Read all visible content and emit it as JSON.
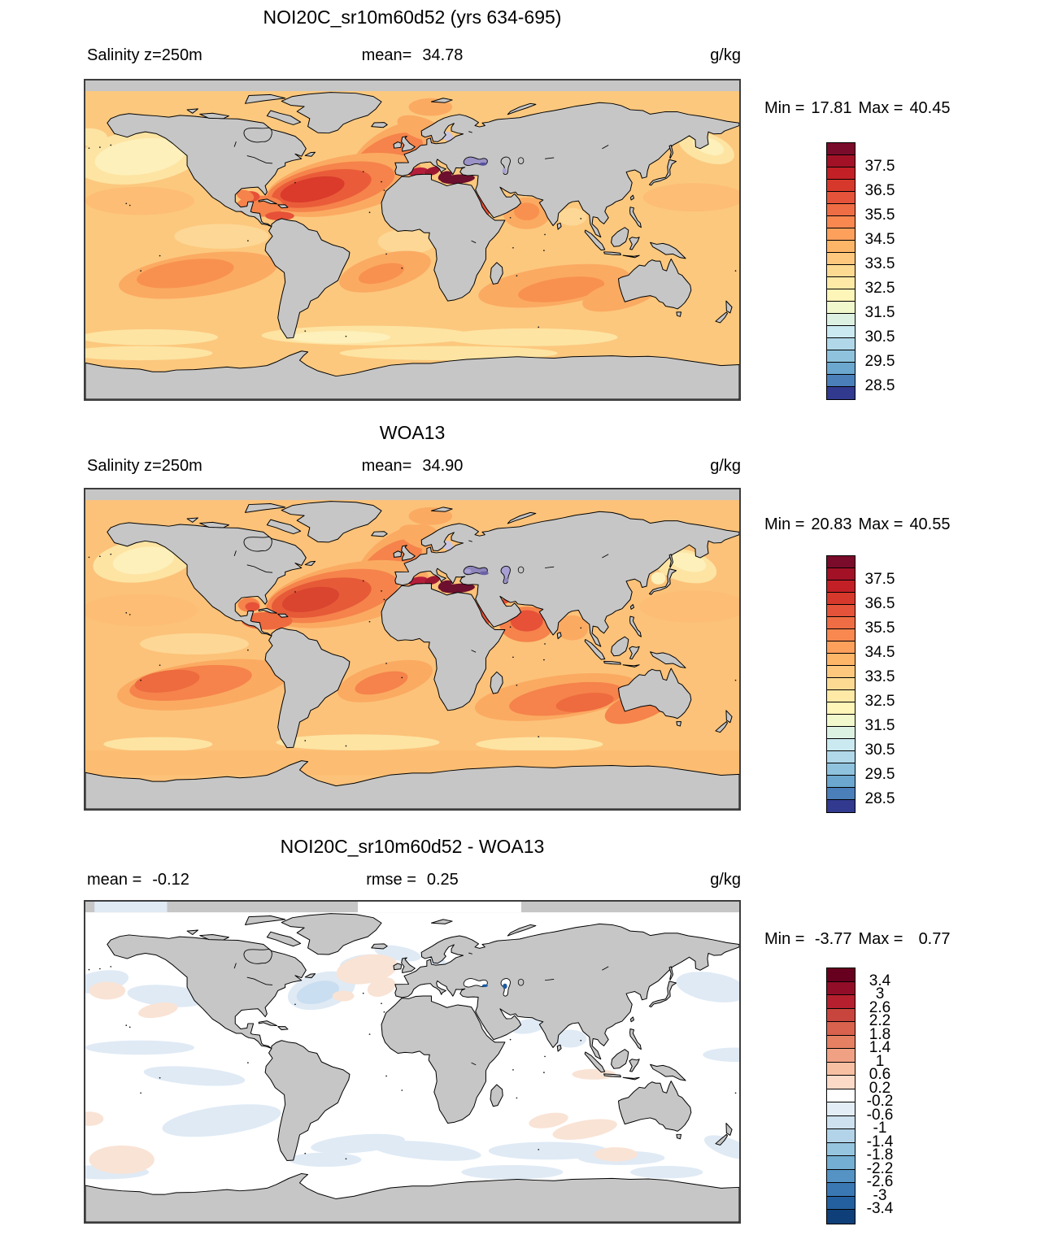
{
  "map_colors": {
    "land": "#c6c6c6",
    "coastline": "#000000",
    "frame": "#3d3d3d",
    "ocean_base_model": "#fcc87e",
    "ocean_base_obs": "#fcc279",
    "ocean_base_diff": "#ffffff"
  },
  "panels": [
    {
      "title": "NOI20C_sr10m60d52 (yrs 634-695)",
      "header": {
        "left_label": "Salinity z=250m",
        "left_value": "",
        "center_label": "mean=",
        "center_value": "34.78",
        "units": "g/kg"
      },
      "legend": {
        "min_label": "Min =",
        "min_value": "17.81",
        "max_label": "Max =",
        "max_value": "40.45"
      },
      "colorbar": {
        "ticks": [
          "37.5",
          "36.5",
          "35.5",
          "34.5",
          "33.5",
          "32.5",
          "31.5",
          "30.5",
          "29.5",
          "28.5"
        ],
        "tick_start": 2,
        "tick_step": 2,
        "colors": [
          "#7a0b2a",
          "#a31127",
          "#c22026",
          "#d6392b",
          "#e4533a",
          "#ef6d44",
          "#f88850",
          "#fca05c",
          "#fdb568",
          "#fdc87e",
          "#fdda92",
          "#feeaa6",
          "#fef5b8",
          "#f0f8cc",
          "#ddf1e3",
          "#cbe9f0",
          "#b0d8e8",
          "#8fc3dd",
          "#6ba7ce",
          "#4a7fba",
          "#313a8e"
        ]
      }
    },
    {
      "title": "WOA13",
      "header": {
        "left_label": "Salinity z=250m",
        "left_value": "",
        "center_label": "mean=",
        "center_value": "34.90",
        "units": "g/kg"
      },
      "legend": {
        "min_label": "Min =",
        "min_value": "20.83",
        "max_label": "Max =",
        "max_value": "40.55"
      },
      "colorbar": {
        "ticks": [
          "37.5",
          "36.5",
          "35.5",
          "34.5",
          "33.5",
          "32.5",
          "31.5",
          "30.5",
          "29.5",
          "28.5"
        ],
        "tick_start": 2,
        "tick_step": 2,
        "colors": [
          "#7a0b2a",
          "#a31127",
          "#c22026",
          "#d6392b",
          "#e4533a",
          "#ef6d44",
          "#f88850",
          "#fca05c",
          "#fdb568",
          "#fdc87e",
          "#fdda92",
          "#feeaa6",
          "#fef5b8",
          "#f0f8cc",
          "#ddf1e3",
          "#cbe9f0",
          "#b0d8e8",
          "#8fc3dd",
          "#6ba7ce",
          "#4a7fba",
          "#313a8e"
        ]
      }
    },
    {
      "title": "NOI20C_sr10m60d52 - WOA13",
      "header": {
        "left_label": "mean =",
        "left_value": "-0.12",
        "center_label": "rmse =",
        "center_value": "0.25",
        "units": "g/kg"
      },
      "legend": {
        "min_label": "Min =",
        "min_value": "-3.77",
        "max_label": "Max =",
        "max_value": "0.77"
      },
      "colorbar": {
        "ticks": [
          "3.4",
          "3",
          "2.6",
          "2.2",
          "1.8",
          "1.4",
          "1",
          "0.6",
          "0.2",
          "-0.2",
          "-0.6",
          "-1",
          "-1.4",
          "-1.8",
          "-2.2",
          "-2.6",
          "-3",
          "-3.4"
        ],
        "tick_start": 1,
        "tick_step": 1,
        "colors": [
          "#67001f",
          "#920e28",
          "#b6202e",
          "#c8453e",
          "#d8624e",
          "#e58063",
          "#f0a183",
          "#f8c0a3",
          "#fbdbc8",
          "#ffffff",
          "#e2edf5",
          "#cde1ef",
          "#b3d4e8",
          "#96c5df",
          "#74afd3",
          "#5593c4",
          "#3a78b4",
          "#24609f",
          "#0f3f78"
        ]
      }
    }
  ],
  "chart_data": [
    {
      "type": "heatmap",
      "subtype": "global_filled_contour_map",
      "title": "NOI20C_sr10m60d52 (yrs 634-695)",
      "variable": "Salinity",
      "depth": "z=250m",
      "units": "g/kg",
      "mean": 34.78,
      "min": 17.81,
      "max": 40.45,
      "colorbar_ticks": [
        37.5,
        36.5,
        35.5,
        34.5,
        33.5,
        32.5,
        31.5,
        30.5,
        29.5,
        28.5
      ],
      "colorbar_levels": 21,
      "colorbar_range": [
        28.0,
        38.5
      ],
      "legend_position": "right",
      "notes": "highest salinity in Mediterranean and N Atlantic subtropical gyre; fresher (pale) N Pacific and Southern Ocean; land masked gray"
    },
    {
      "type": "heatmap",
      "subtype": "global_filled_contour_map",
      "title": "WOA13",
      "variable": "Salinity",
      "depth": "z=250m",
      "units": "g/kg",
      "mean": 34.9,
      "min": 20.83,
      "max": 40.55,
      "colorbar_ticks": [
        37.5,
        36.5,
        35.5,
        34.5,
        33.5,
        32.5,
        31.5,
        30.5,
        29.5,
        28.5
      ],
      "colorbar_levels": 21,
      "colorbar_range": [
        28.0,
        38.5
      ],
      "legend_position": "right"
    },
    {
      "type": "heatmap",
      "subtype": "global_difference_map",
      "title": "NOI20C_sr10m60d52 - WOA13",
      "units": "g/kg",
      "mean": -0.12,
      "rmse": 0.25,
      "min": -3.77,
      "max": 0.77,
      "colorbar_ticks": [
        3.4,
        3,
        2.6,
        2.2,
        1.8,
        1.4,
        1,
        0.6,
        0.2,
        -0.2,
        -0.6,
        -1,
        -1.4,
        -1.8,
        -2.2,
        -2.6,
        -3,
        -3.4
      ],
      "colorbar_levels": 19,
      "legend_position": "right",
      "notes": "mostly near-zero (white); weak fresh bias (pale blue) in mid/high-latitude bands, weak salty bias (pale pink) NE Atlantic and S Indian; strong negative spot in Caspian Sea"
    }
  ]
}
